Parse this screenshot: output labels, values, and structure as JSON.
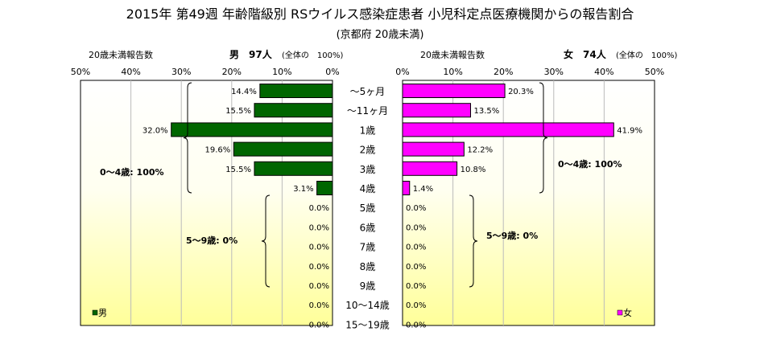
{
  "title": "2015年 第49週 年齢階級別 RSウイルス感染症患者 小児科定点医療機関からの報告割合",
  "subtitle": "(京都府 20歳未満)",
  "chart_data": {
    "type": "bar",
    "orientation": "horizontal",
    "layout": "population-pyramid",
    "categories": [
      "～5ヶ月",
      "～11ヶ月",
      "1歳",
      "2歳",
      "3歳",
      "4歳",
      "5歳",
      "6歳",
      "7歳",
      "8歳",
      "9歳",
      "10～14歳",
      "15～19歳"
    ],
    "x_ticks": [
      "50%",
      "40%",
      "30%",
      "20%",
      "10%",
      "0%"
    ],
    "xlim": [
      0,
      50
    ],
    "grid": true,
    "series": [
      {
        "name": "男",
        "side": "left",
        "color": "#006600",
        "header_left": "20歳未満報告数",
        "header_main": "男　97人",
        "header_note": "(全体の　100%)",
        "values": [
          14.4,
          15.5,
          32.0,
          19.6,
          15.5,
          3.1,
          0.0,
          0.0,
          0.0,
          0.0,
          0.0,
          0.0,
          0.0
        ],
        "labels": [
          "14.4%",
          "15.5%",
          "32.0%",
          "19.6%",
          "15.5%",
          "3.1%",
          "0.0%",
          "0.0%",
          "0.0%",
          "0.0%",
          "0.0%",
          "0.0%",
          "0.0%"
        ],
        "groups": [
          {
            "label": "0～4歳: 100%"
          },
          {
            "label": "5～9歳: 0%"
          }
        ]
      },
      {
        "name": "女",
        "side": "right",
        "color": "#ff00ff",
        "header_left": "20歳未満報告数",
        "header_main": "女　74人",
        "header_note": "(全体の　100%)",
        "values": [
          20.3,
          13.5,
          41.9,
          12.2,
          10.8,
          1.4,
          0.0,
          0.0,
          0.0,
          0.0,
          0.0,
          0.0,
          0.0
        ],
        "labels": [
          "20.3%",
          "13.5%",
          "41.9%",
          "12.2%",
          "10.8%",
          "1.4%",
          "0.0%",
          "0.0%",
          "0.0%",
          "0.0%",
          "0.0%",
          "0.0%",
          "0.0%"
        ],
        "groups": [
          {
            "label": "0～4歳: 100%"
          },
          {
            "label": "5～9歳: 0%"
          }
        ]
      }
    ],
    "legend_position": "bottom-left / bottom-right"
  }
}
